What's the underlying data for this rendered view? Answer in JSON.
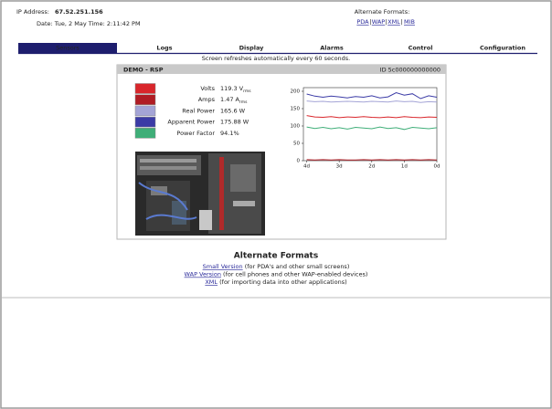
{
  "header": {
    "ip_label": "IP Address:",
    "ip": "67.52.251.156",
    "date_line": "Date: Tue, 2 May Time: 2:11:42 PM",
    "alt_label": "Alternate Formats:",
    "alt_links": [
      "PDA",
      "WAP",
      "XML",
      "MIB"
    ]
  },
  "nav": [
    "Sensors",
    "Logs",
    "Display",
    "Alarms",
    "Control",
    "Configuration"
  ],
  "active_tab": 0,
  "refresh_note": "Screen refreshes automatically every 60 seconds.",
  "panel": {
    "title": "DEMO - RSP",
    "id": "ID 5c000000000000",
    "readings": [
      {
        "label": "Volts",
        "value": "119.3 V",
        "unit": "rms",
        "color": "#d9262b"
      },
      {
        "label": "Amps",
        "value": "1.47 A",
        "unit": "rms",
        "color": "#b01c24"
      },
      {
        "label": "Real Power",
        "value": "165.6 W",
        "color": "#a4a4d6"
      },
      {
        "label": "Apparent Power",
        "value": "175.88 W",
        "color": "#3b3ba6"
      },
      {
        "label": "Power Factor",
        "value": "94.1%",
        "color": "#3fae78"
      }
    ]
  },
  "chart": {
    "type": "line",
    "xlim": [
      -4.1,
      0
    ],
    "xticks": [
      {
        "value": -4,
        "label": "4d"
      },
      {
        "value": -3,
        "label": "3d"
      },
      {
        "value": -2,
        "label": "2d"
      },
      {
        "value": -1,
        "label": "1d"
      },
      {
        "value": 0,
        "label": "0d"
      }
    ],
    "ylim": [
      0,
      200
    ],
    "yticks": [
      0,
      50,
      100,
      150,
      200
    ],
    "x": [
      -4,
      -3.75,
      -3.5,
      -3.25,
      -3,
      -2.75,
      -2.5,
      -2.25,
      -2,
      -1.75,
      -1.5,
      -1.25,
      -1,
      -0.75,
      -0.5,
      -0.25,
      0
    ],
    "series": [
      {
        "color": "#3b3ba6",
        "values": [
          192,
          186,
          183,
          186,
          184,
          181,
          185,
          183,
          187,
          181,
          184,
          196,
          189,
          193,
          179,
          187,
          183
        ]
      },
      {
        "color": "#a4a4d6",
        "values": [
          172,
          170,
          171,
          169,
          170,
          171,
          170,
          169,
          171,
          170,
          169,
          172,
          170,
          171,
          168,
          170,
          169
        ]
      },
      {
        "color": "#d9262b",
        "values": [
          130,
          126,
          125,
          127,
          124,
          126,
          125,
          127,
          125,
          124,
          126,
          124,
          127,
          125,
          124,
          126,
          125
        ]
      },
      {
        "color": "#3fae78",
        "values": [
          97,
          93,
          96,
          92,
          95,
          91,
          96,
          94,
          92,
          97,
          93,
          95,
          90,
          96,
          94,
          92,
          95
        ]
      },
      {
        "color": "#b01c24",
        "values": [
          3,
          2,
          3,
          2,
          3,
          2,
          2,
          3,
          2,
          3,
          2,
          3,
          2,
          3,
          2,
          3,
          2
        ]
      }
    ]
  },
  "alt_formats": {
    "title": "Alternate Formats",
    "items": [
      {
        "link": "Small Version",
        "desc": "(for PDA's and other small screens)"
      },
      {
        "link": "WAP Version",
        "desc": "(for cell phones and other WAP-enabled devices)"
      },
      {
        "link": "XML",
        "desc": "(for importing data into other applications)"
      }
    ]
  }
}
